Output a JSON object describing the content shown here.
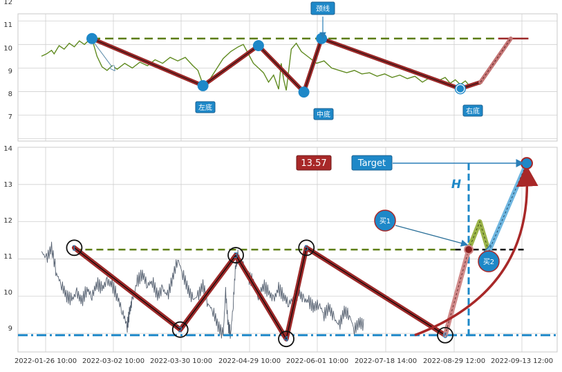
{
  "chart_data": [
    {
      "type": "line",
      "panel": "top",
      "ylim": [
        6.9,
        12.3
      ],
      "yticks": [
        "7",
        "8",
        "9",
        "10",
        "11",
        "12"
      ],
      "grid": true,
      "series": [
        {
          "name": "",
          "values": [
            [
              0.0,
              10.5
            ],
            [
              0.01,
              10.6
            ],
            [
              0.02,
              10.75
            ],
            [
              0.025,
              10.6
            ],
            [
              0.035,
              10.95
            ],
            [
              0.045,
              10.8
            ],
            [
              0.055,
              11.05
            ],
            [
              0.065,
              10.9
            ],
            [
              0.075,
              11.15
            ],
            [
              0.085,
              11.0
            ],
            [
              0.095,
              11.2
            ],
            [
              0.1,
              11.25
            ],
            [
              0.11,
              10.5
            ],
            [
              0.12,
              10.05
            ],
            [
              0.13,
              9.9
            ],
            [
              0.14,
              10.1
            ],
            [
              0.15,
              9.95
            ],
            [
              0.165,
              10.2
            ],
            [
              0.18,
              10.0
            ],
            [
              0.195,
              10.25
            ],
            [
              0.21,
              10.1
            ],
            [
              0.225,
              10.35
            ],
            [
              0.24,
              10.2
            ],
            [
              0.255,
              10.45
            ],
            [
              0.27,
              10.3
            ],
            [
              0.285,
              10.45
            ],
            [
              0.3,
              10.1
            ],
            [
              0.31,
              9.9
            ],
            [
              0.32,
              9.3
            ],
            [
              0.33,
              9.4
            ],
            [
              0.345,
              9.9
            ],
            [
              0.36,
              10.4
            ],
            [
              0.375,
              10.7
            ],
            [
              0.39,
              10.9
            ],
            [
              0.4,
              11.0
            ],
            [
              0.41,
              10.6
            ],
            [
              0.42,
              10.2
            ],
            [
              0.43,
              10.0
            ],
            [
              0.44,
              9.8
            ],
            [
              0.45,
              9.4
            ],
            [
              0.46,
              9.7
            ],
            [
              0.47,
              9.1
            ],
            [
              0.475,
              10.2
            ],
            [
              0.48,
              9.5
            ],
            [
              0.485,
              9.05
            ],
            [
              0.495,
              10.8
            ],
            [
              0.505,
              11.05
            ],
            [
              0.515,
              10.7
            ],
            [
              0.53,
              10.45
            ],
            [
              0.545,
              10.2
            ],
            [
              0.56,
              10.3
            ],
            [
              0.575,
              10.0
            ],
            [
              0.59,
              9.9
            ],
            [
              0.605,
              9.8
            ],
            [
              0.62,
              9.9
            ],
            [
              0.635,
              9.75
            ],
            [
              0.65,
              9.8
            ],
            [
              0.665,
              9.65
            ],
            [
              0.68,
              9.75
            ],
            [
              0.695,
              9.6
            ],
            [
              0.71,
              9.7
            ],
            [
              0.725,
              9.55
            ],
            [
              0.74,
              9.65
            ],
            [
              0.755,
              9.4
            ],
            [
              0.77,
              9.6
            ],
            [
              0.785,
              9.45
            ],
            [
              0.8,
              9.6
            ],
            [
              0.81,
              9.35
            ],
            [
              0.82,
              9.5
            ],
            [
              0.83,
              9.3
            ],
            [
              0.84,
              9.45
            ],
            [
              0.85,
              9.2
            ],
            [
              0.86,
              9.4
            ],
            [
              0.87,
              9.3
            ]
          ]
        }
      ],
      "pattern_points": [
        [
          0.1,
          11.25
        ],
        [
          0.32,
          9.25
        ],
        [
          0.43,
          10.95
        ],
        [
          0.52,
          8.98
        ],
        [
          0.555,
          11.25
        ],
        [
          0.83,
          9.12
        ],
        [
          0.87,
          9.4
        ],
        [
          0.93,
          11.25
        ]
      ],
      "neckline": 11.25,
      "annotations": [
        "左底",
        "中底",
        "右底",
        "颈线"
      ]
    },
    {
      "type": "line",
      "panel": "bottom",
      "ylim": [
        8.5,
        14.0
      ],
      "yticks": [
        "9",
        "10",
        "11",
        "12",
        "13",
        "14"
      ],
      "xticks": [
        "2022-01-26 10:00",
        "2022-03-02 10:00",
        "2022-03-30 10:00",
        "2022-04-29 10:00",
        "2022-06-01 10:00",
        "2022-07-18 14:00",
        "2022-08-29 12:00",
        "2022-09-13 12:00"
      ],
      "grid": true,
      "series": [
        {
          "name": "",
          "values": [
            [
              0.0,
              11.2
            ],
            [
              0.01,
              11.0
            ],
            [
              0.02,
              11.3
            ],
            [
              0.03,
              10.6
            ],
            [
              0.04,
              10.3
            ],
            [
              0.05,
              10.0
            ],
            [
              0.06,
              9.9
            ],
            [
              0.07,
              10.1
            ],
            [
              0.08,
              9.85
            ],
            [
              0.09,
              10.2
            ],
            [
              0.1,
              10.0
            ],
            [
              0.11,
              10.35
            ],
            [
              0.12,
              10.2
            ],
            [
              0.13,
              10.4
            ],
            [
              0.14,
              10.3
            ],
            [
              0.15,
              10.0
            ],
            [
              0.16,
              9.6
            ],
            [
              0.17,
              9.2
            ],
            [
              0.175,
              9.6
            ],
            [
              0.18,
              9.9
            ],
            [
              0.19,
              10.4
            ],
            [
              0.2,
              10.6
            ],
            [
              0.21,
              10.3
            ],
            [
              0.22,
              10.4
            ],
            [
              0.23,
              10.0
            ],
            [
              0.24,
              10.2
            ],
            [
              0.25,
              10.0
            ],
            [
              0.26,
              10.5
            ],
            [
              0.27,
              11.0
            ],
            [
              0.28,
              10.6
            ],
            [
              0.29,
              10.2
            ],
            [
              0.3,
              9.9
            ],
            [
              0.31,
              10.0
            ],
            [
              0.32,
              10.3
            ],
            [
              0.33,
              9.8
            ],
            [
              0.34,
              9.6
            ],
            [
              0.35,
              9.2
            ],
            [
              0.36,
              8.95
            ],
            [
              0.365,
              10.1
            ],
            [
              0.37,
              9.2
            ],
            [
              0.375,
              9.0
            ],
            [
              0.38,
              9.8
            ],
            [
              0.385,
              10.9
            ],
            [
              0.39,
              11.1
            ],
            [
              0.4,
              10.8
            ],
            [
              0.41,
              10.5
            ],
            [
              0.42,
              10.4
            ],
            [
              0.43,
              10.0
            ],
            [
              0.44,
              10.3
            ],
            [
              0.45,
              10.1
            ],
            [
              0.46,
              9.9
            ],
            [
              0.47,
              10.2
            ],
            [
              0.48,
              10.0
            ],
            [
              0.49,
              9.8
            ],
            [
              0.5,
              9.95
            ],
            [
              0.51,
              10.1
            ],
            [
              0.52,
              9.9
            ],
            [
              0.53,
              9.85
            ],
            [
              0.54,
              9.7
            ],
            [
              0.55,
              9.8
            ],
            [
              0.56,
              9.5
            ],
            [
              0.57,
              9.7
            ],
            [
              0.58,
              9.4
            ],
            [
              0.59,
              9.2
            ],
            [
              0.6,
              9.6
            ],
            [
              0.61,
              9.5
            ],
            [
              0.62,
              9.1
            ],
            [
              0.63,
              9.3
            ],
            [
              0.64,
              9.2
            ]
          ]
        }
      ],
      "pattern_points_labels": [
        "1",
        "2",
        "3",
        "4",
        "5",
        "6"
      ],
      "pattern_points": [
        [
          0.065,
          11.3
        ],
        [
          0.275,
          9.1
        ],
        [
          0.385,
          11.1
        ],
        [
          0.485,
          8.85
        ],
        [
          0.525,
          11.3
        ],
        [
          0.8,
          8.95
        ]
      ],
      "neckline": 11.25,
      "support": 8.95,
      "target": 13.57,
      "annotations": [
        "13.57",
        "Target",
        "H",
        "买1",
        "买2"
      ]
    }
  ],
  "colors": {
    "price": "#5f8a1f",
    "price_bottom": "#556070",
    "pattern": "#9c2a2a",
    "neckline": "#5c7d12",
    "support": "#1e88c8",
    "label_bg": "#1e88c8",
    "target_bg": "#a82828",
    "grid": "#cfcfcf"
  }
}
